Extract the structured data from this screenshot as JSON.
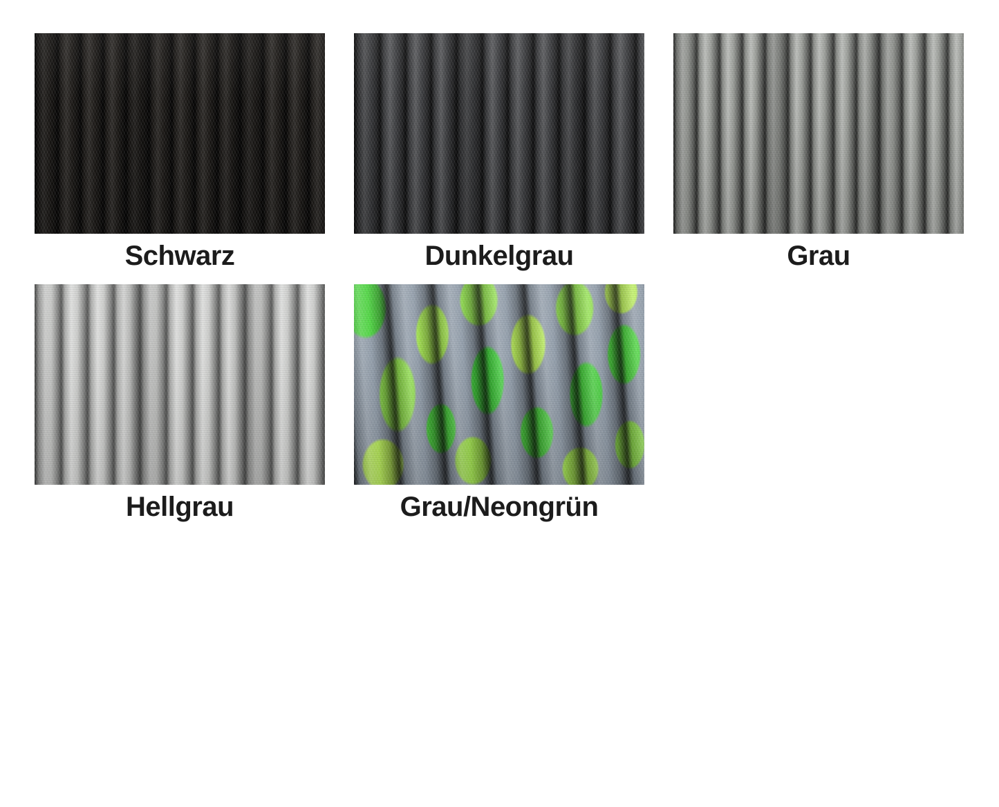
{
  "page": {
    "background_color": "#ffffff",
    "label_color": "#1c1c1c"
  },
  "swatches": [
    {
      "id": "schwarz",
      "label": "Schwarz",
      "base_color": "#211e1b",
      "shadow_color": "#0d0b0a",
      "highlight_color": "#343029"
    },
    {
      "id": "dunkelgrau",
      "label": "Dunkelgrau",
      "base_color": "#434447",
      "shadow_color": "#1d1d1f",
      "highlight_color": "#5a5b5f"
    },
    {
      "id": "grau",
      "label": "Grau",
      "base_color": "#a0a39e",
      "shadow_color": "#42453e",
      "highlight_color": "#bcbfb8"
    },
    {
      "id": "hellgrau",
      "label": "Hellgrau",
      "base_color": "#c6c7c5",
      "shadow_color": "#6a6b69",
      "highlight_color": "#e4e5e3"
    },
    {
      "id": "grau-neongruen",
      "label": "Grau/Neongrün",
      "base_color": "#8e9aa7",
      "shadow_color": "#3c4650",
      "highlight_color": "#b0bcc6",
      "accent_colors": [
        "#3ecf39",
        "#8fe04a",
        "#b7ec55"
      ]
    }
  ]
}
